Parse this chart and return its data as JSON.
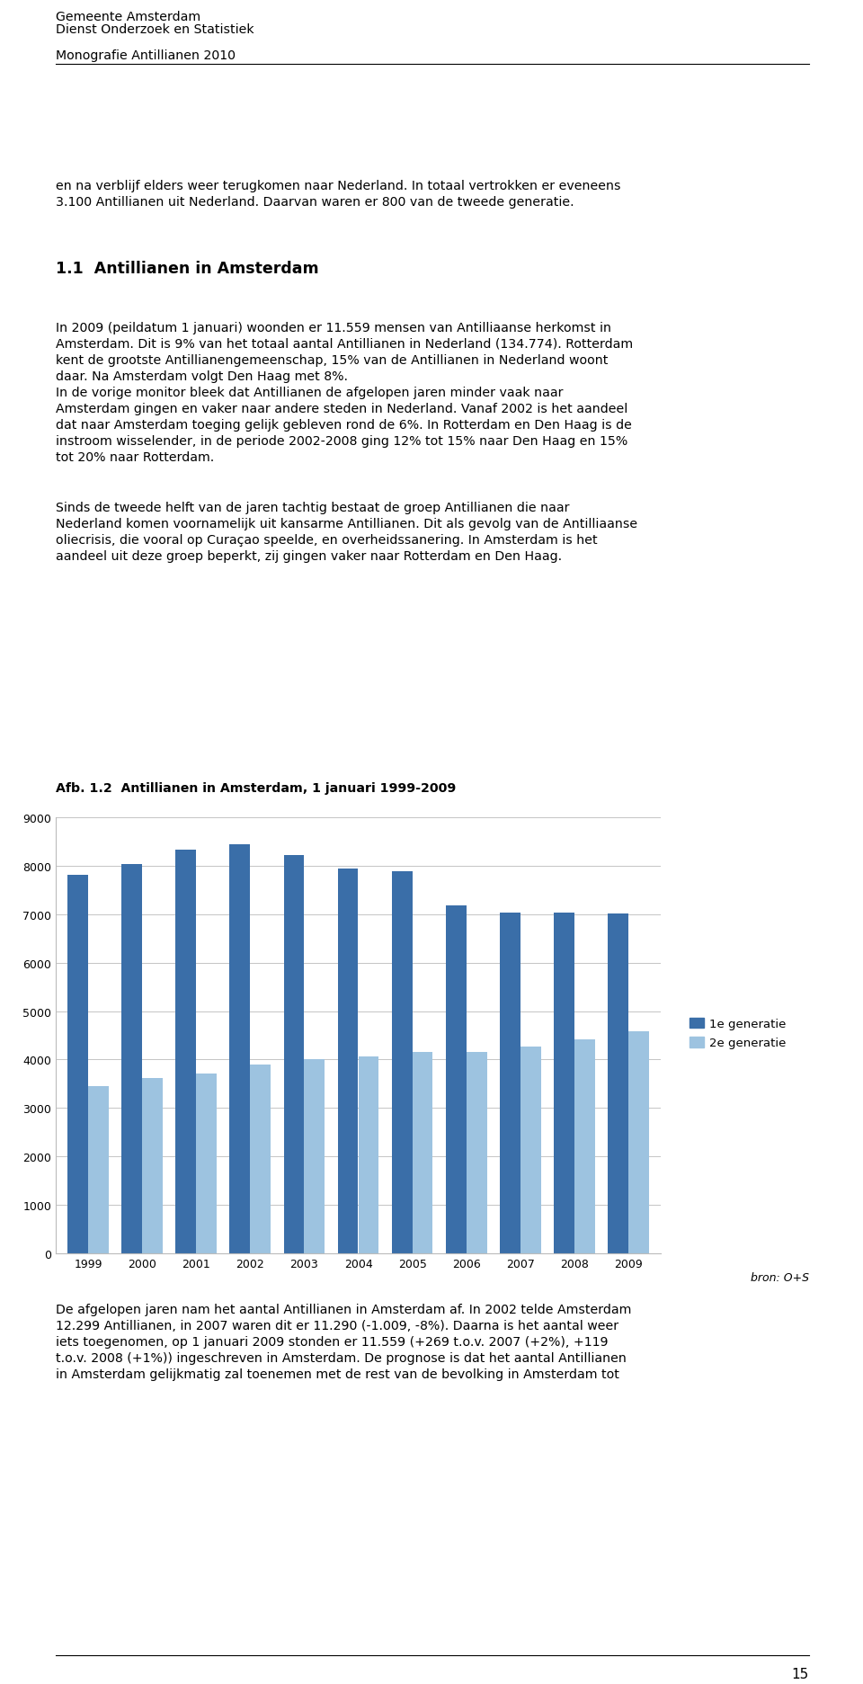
{
  "header_line1": "Gemeente Amsterdam",
  "header_line2": "Dienst Onderzoek en Statistiek",
  "header_line3": "Monografie Antillianen 2010",
  "chart_title": "Afb. 1.2  Antillianen in Amsterdam, 1 januari 1999-2009",
  "years": [
    1999,
    2000,
    2001,
    2002,
    2003,
    2004,
    2005,
    2006,
    2007,
    2008,
    2009
  ],
  "gen1_values": [
    7820,
    8030,
    8340,
    8450,
    8220,
    7950,
    7880,
    7180,
    7030,
    7030,
    7010
  ],
  "gen2_values": [
    3460,
    3610,
    3720,
    3900,
    4010,
    4060,
    4150,
    4160,
    4270,
    4410,
    4580
  ],
  "gen1_color": "#3A6EA8",
  "gen2_color": "#9DC3E0",
  "legend_gen1": "1e generatie",
  "legend_gen2": "2e generatie",
  "ylim": [
    0,
    9000
  ],
  "yticks": [
    0,
    1000,
    2000,
    3000,
    4000,
    5000,
    6000,
    7000,
    8000,
    9000
  ],
  "source_text": "bron: O+S",
  "page_number": "15",
  "fig_width": 9.6,
  "fig_height": 18.74,
  "dpi": 100
}
